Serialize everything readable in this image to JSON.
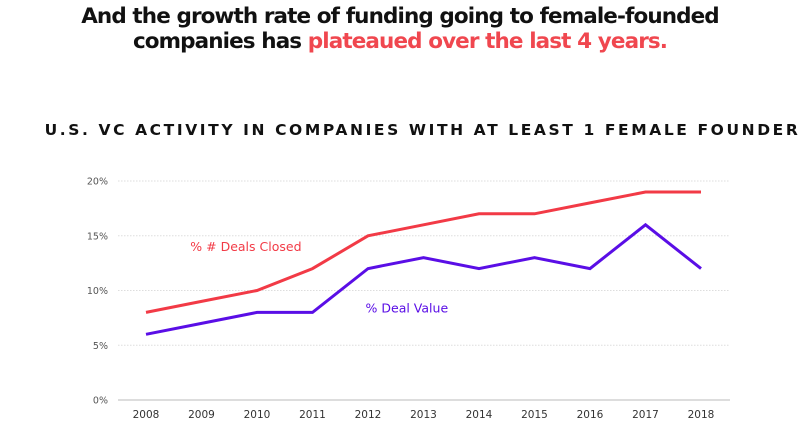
{
  "headline": {
    "line1": "And the growth rate of funding going to female-founded",
    "line2_prefix": "companies has ",
    "line2_highlight": "plateaued over the last 4 years."
  },
  "colors": {
    "highlight": "#f0474f",
    "deals_closed": "#f23a46",
    "deal_value": "#5a0ee6",
    "gridline": "#dddddd",
    "baseline": "#dddddd"
  },
  "chart_data": {
    "type": "line",
    "title": "U.S. VC ACTIVITY IN COMPANIES WITH AT LEAST 1 FEMALE FOUNDER",
    "xlabel": "",
    "ylabel": "",
    "x": [
      "2008",
      "2009",
      "2010",
      "2011",
      "2012",
      "2013",
      "2014",
      "2015",
      "2016",
      "2017",
      "2018"
    ],
    "ylim": [
      0,
      20
    ],
    "yticks": [
      0,
      5,
      10,
      15,
      20
    ],
    "ytick_labels": [
      "0%",
      "5%",
      "10%",
      "15%",
      "20%"
    ],
    "grid": true,
    "legend": "inline labels",
    "series": [
      {
        "name": "% # Deals Closed",
        "color": "#f23a46",
        "values": [
          8,
          9,
          10,
          12,
          15,
          16,
          17,
          17,
          18,
          19,
          19
        ]
      },
      {
        "name": "% Deal Value",
        "color": "#5a0ee6",
        "values": [
          6,
          7,
          8,
          8,
          12,
          13,
          12,
          13,
          12,
          16,
          12
        ]
      }
    ],
    "annotations": [
      {
        "text": "% # Deals Closed",
        "series": 0,
        "anchor_x": "2009.8",
        "anchor_y": 13.6
      },
      {
        "text": "% Deal Value",
        "series": 1,
        "anchor_x": "2012.7",
        "anchor_y": 8
      }
    ]
  }
}
